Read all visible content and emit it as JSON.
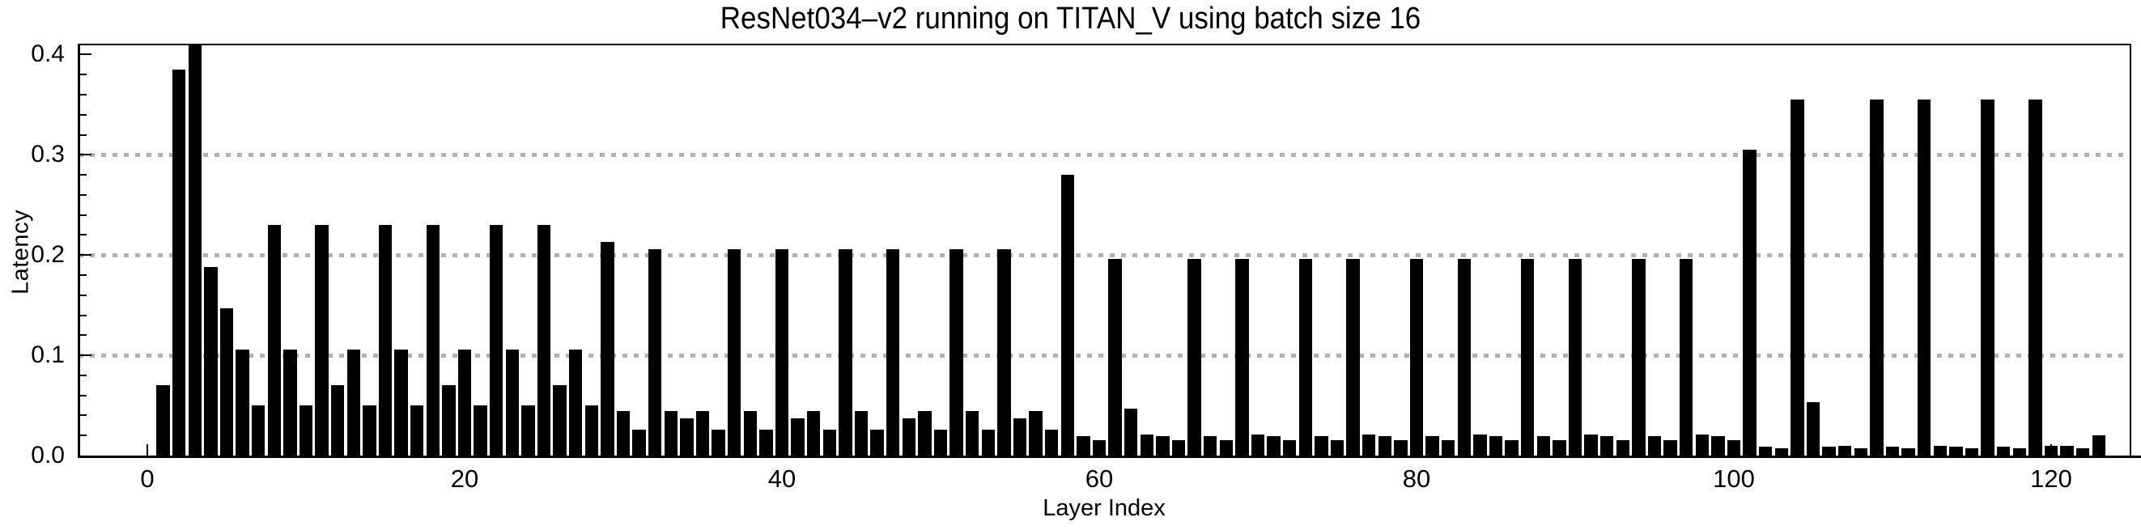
{
  "title": "ResNet034–v2 running on TITAN_V using batch size 16",
  "axes": {
    "ylabel": "Latency",
    "xlabel": "Layer Index",
    "y_tick_labels": [
      "0.0",
      "0.1",
      "0.2",
      "0.3",
      "0.4"
    ],
    "x_tick_labels": [
      "0",
      "20",
      "40",
      "60",
      "80",
      "100",
      "120"
    ]
  },
  "colors": {
    "bar": "#000000",
    "grid": "#b2b2b2",
    "frame": "#000000",
    "background": "#ffffff",
    "text": "#000000"
  },
  "chart_data": {
    "type": "bar",
    "title": "ResNet034–v2 running on TITAN_V using batch size 16",
    "xlabel": "Layer Index",
    "ylabel": "Latency",
    "x_start": 1,
    "values": [
      0.07,
      0.385,
      0.412,
      0.188,
      0.147,
      0.106,
      0.05,
      0.23,
      0.106,
      0.05,
      0.23,
      0.07,
      0.106,
      0.05,
      0.23,
      0.106,
      0.05,
      0.23,
      0.07,
      0.106,
      0.05,
      0.23,
      0.106,
      0.05,
      0.23,
      0.07,
      0.106,
      0.05,
      0.213,
      0.044,
      0.026,
      0.206,
      0.044,
      0.037,
      0.044,
      0.026,
      0.206,
      0.044,
      0.026,
      0.206,
      0.037,
      0.044,
      0.026,
      0.206,
      0.044,
      0.026,
      0.206,
      0.037,
      0.044,
      0.026,
      0.206,
      0.044,
      0.026,
      0.206,
      0.037,
      0.044,
      0.026,
      0.28,
      0.019,
      0.015,
      0.196,
      0.047,
      0.021,
      0.019,
      0.015,
      0.196,
      0.019,
      0.015,
      0.196,
      0.021,
      0.019,
      0.015,
      0.196,
      0.019,
      0.015,
      0.196,
      0.021,
      0.019,
      0.015,
      0.196,
      0.019,
      0.015,
      0.196,
      0.021,
      0.019,
      0.015,
      0.196,
      0.019,
      0.015,
      0.196,
      0.021,
      0.019,
      0.015,
      0.196,
      0.019,
      0.015,
      0.196,
      0.021,
      0.019,
      0.015,
      0.305,
      0.009,
      0.007,
      0.355,
      0.053,
      0.009,
      0.01,
      0.007,
      0.355,
      0.009,
      0.007,
      0.355,
      0.01,
      0.009,
      0.007,
      0.355,
      0.009,
      0.007,
      0.355,
      0.01,
      0.01,
      0.007,
      0.02
    ],
    "ylim": [
      0.0,
      0.41
    ],
    "xlim": [
      -4.3,
      125
    ],
    "x_major_tick_values": [
      0,
      20,
      40,
      60,
      80,
      100,
      120
    ],
    "y_major_tick_values": [
      0.0,
      0.1,
      0.2,
      0.3,
      0.4
    ],
    "gridlines_y": [
      0.1,
      0.2,
      0.3
    ],
    "grid_style": "dotted horizontal",
    "legend": "none"
  }
}
